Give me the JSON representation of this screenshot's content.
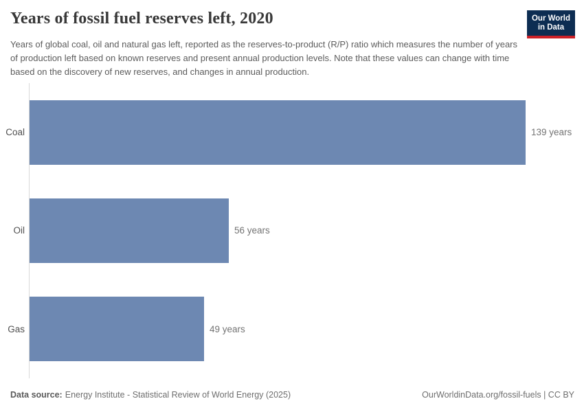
{
  "header": {
    "title": "Years of fossil fuel reserves left, 2020",
    "subtitle": "Years of global coal, oil and natural gas left, reported as the reserves-to-product (R/P) ratio which measures the number of years of production left based on known reserves and present annual production levels. Note that these values can change with time based on the discovery of new reserves, and changes in annual production.",
    "logo_line1": "Our World",
    "logo_line2": "in Data"
  },
  "chart_data": {
    "type": "bar",
    "orientation": "horizontal",
    "categories": [
      "Coal",
      "Oil",
      "Gas"
    ],
    "values": [
      139,
      56,
      49
    ],
    "value_labels": [
      "139 years",
      "56 years",
      "49 years"
    ],
    "unit": "years",
    "title": "Years of fossil fuel reserves left, 2020",
    "xlabel": "",
    "ylabel": "",
    "xlim": [
      0,
      139
    ],
    "grid": false,
    "legend": false
  },
  "footer": {
    "datasource_label": "Data source:",
    "datasource": "Energy Institute - Statistical Review of World Energy (2025)",
    "credit": "OurWorldinData.org/fossil-fuels | CC BY"
  },
  "colors": {
    "bar": "#6d88b2",
    "axis": "#d9d9d9",
    "logo_background": "#0d2d52",
    "logo_underline": "#cc2128",
    "title_text": "#383838",
    "subtitle_text": "#5b5b5b"
  }
}
